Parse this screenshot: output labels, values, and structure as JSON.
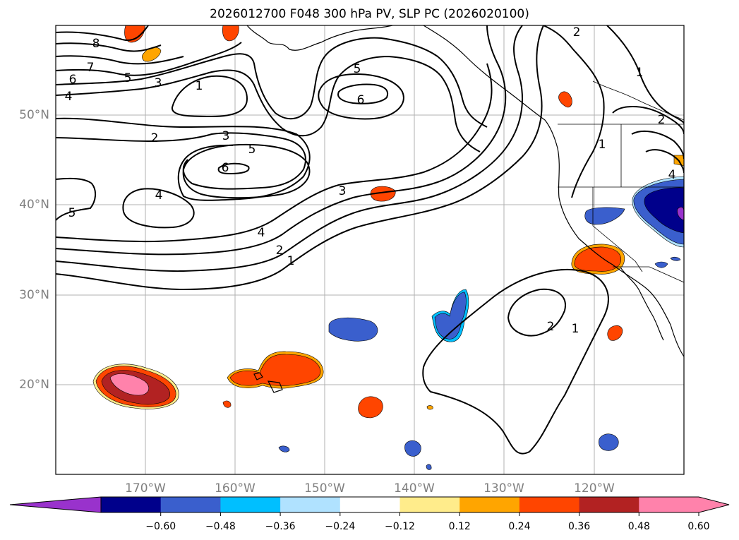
{
  "title": "2026012700 F048 300 hPa PV, SLP PC (2026020100)",
  "map": {
    "lon_range": [
      -180,
      -110
    ],
    "lat_range": [
      10,
      60
    ],
    "lat_labels": [
      "20°N",
      "30°N",
      "40°N",
      "50°N"
    ],
    "lon_labels": [
      "170°W",
      "160°W",
      "150°W",
      "140°W",
      "130°W",
      "120°W"
    ]
  },
  "contour_labels": [
    "8",
    "7",
    "6",
    "5",
    "4",
    "3",
    "2",
    "1",
    "5",
    "6",
    "2",
    "3",
    "5",
    "6",
    "4",
    "5",
    "4",
    "2",
    "1",
    "3",
    "2",
    "1",
    "2",
    "4",
    "2",
    "1"
  ],
  "colorbar": {
    "ticks": [
      "−0.60",
      "−0.48",
      "−0.36",
      "−0.24",
      "−0.12",
      "0.12",
      "0.24",
      "0.36",
      "0.48",
      "0.60"
    ],
    "colors": [
      "#9932cc",
      "#00008b",
      "#3a5fcd",
      "#00bfff",
      "#b0e2ff",
      "#ffffff",
      "#ffec8b",
      "#ffa500",
      "#ff4500",
      "#b22222",
      "#ff82ab",
      "#ff82ab"
    ]
  }
}
